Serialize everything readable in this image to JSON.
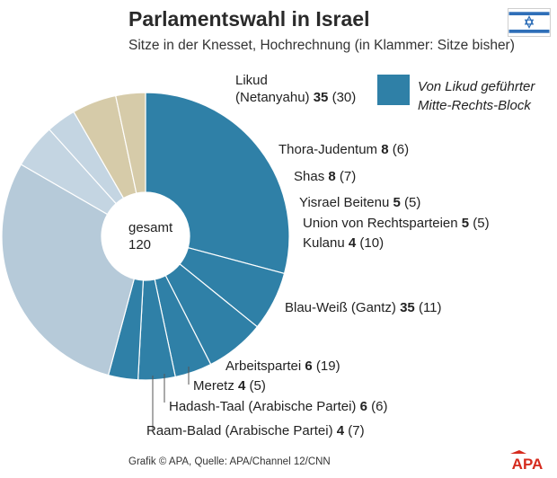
{
  "title": "Parlamentswahl in Israel",
  "subtitle": "Sitze in der Knesset, Hochrechnung (in Klammer: Sitze bisher)",
  "legend": {
    "line1": "Von Likud geführter",
    "line2": "Mitte-Rechts-Block"
  },
  "total": {
    "label": "gesamt",
    "value": "120"
  },
  "footer": {
    "source": "Grafik © APA, Quelle: APA/Channel 12/CNN",
    "brand": "APA"
  },
  "colors": {
    "block": "#2f80a7",
    "blau_weiss": "#b6cad9",
    "left": "#c4d5e2",
    "arab": "#d6cba9"
  },
  "chart_data": {
    "type": "pie",
    "variant": "half-donut",
    "title": "Parlamentswahl in Israel",
    "subtitle": "Sitze in der Knesset, Hochrechnung (in Klammer: Sitze bisher)",
    "total": 120,
    "slices": [
      {
        "name": "Likud",
        "line1": "Likud",
        "line2": "(Netanyahu)",
        "seats": 35,
        "seats_text": "35",
        "prev_text": "(30)",
        "group": "block"
      },
      {
        "name": "Thora-Judentum",
        "seats": 8,
        "seats_text": "8",
        "prev_text": "(6)",
        "group": "block"
      },
      {
        "name": "Shas",
        "seats": 8,
        "seats_text": "8",
        "prev_text": "(7)",
        "group": "block"
      },
      {
        "name": "Yisrael Beitenu",
        "seats": 5,
        "seats_text": "5",
        "prev_text": "(5)",
        "group": "block"
      },
      {
        "name": "Union von Rechtsparteien",
        "seats": 5,
        "seats_text": "5",
        "prev_text": "(5)",
        "group": "block"
      },
      {
        "name": "Kulanu",
        "seats": 4,
        "seats_text": "4",
        "prev_text": "(10)",
        "group": "block"
      },
      {
        "name": "Blau-Weiß (Gantz)",
        "seats": 35,
        "seats_text": "35",
        "prev_text": "(11)",
        "group": "blau_weiss"
      },
      {
        "name": "Arbeitspartei",
        "seats": 6,
        "seats_text": "6",
        "prev_text": "(19)",
        "group": "left"
      },
      {
        "name": "Meretz",
        "seats": 4,
        "seats_text": "4",
        "prev_text": "(5)",
        "group": "left"
      },
      {
        "name": "Hadash-Taal (Arabische Partei)",
        "seats": 6,
        "seats_text": "6",
        "prev_text": "(6)",
        "group": "arab"
      },
      {
        "name": "Raam-Balad (Arabische Partei)",
        "seats": 4,
        "seats_text": "4",
        "prev_text": "(7)",
        "group": "arab"
      }
    ]
  }
}
